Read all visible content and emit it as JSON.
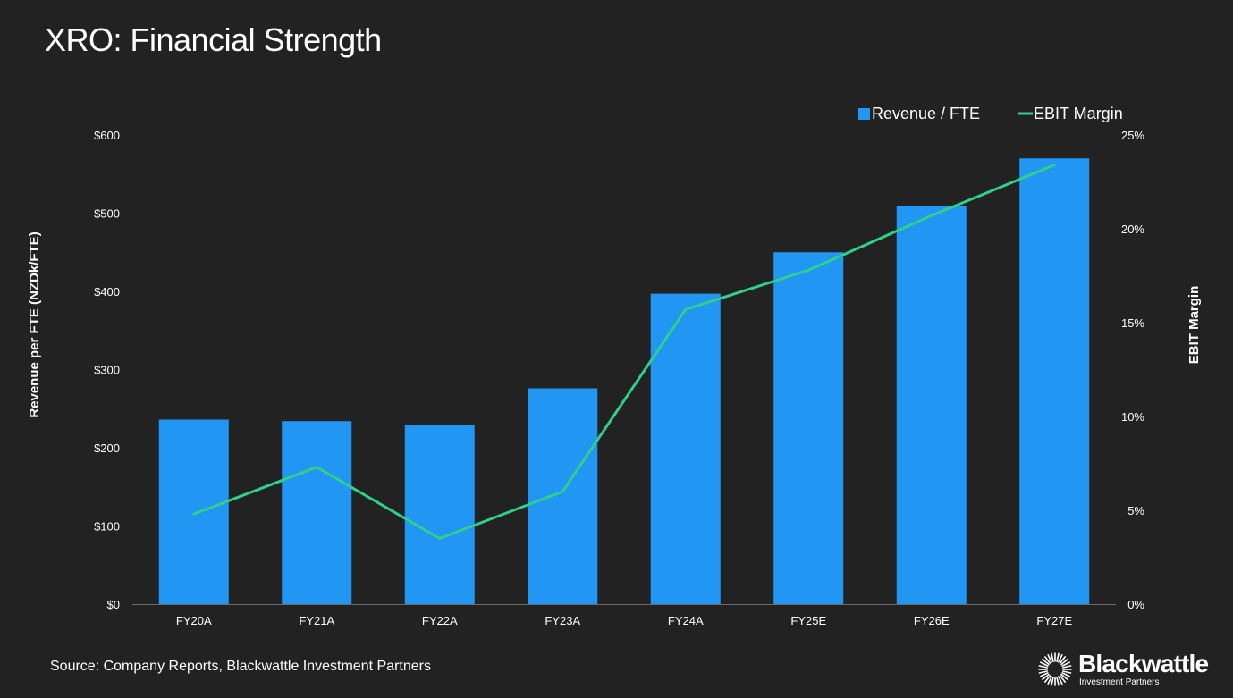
{
  "page": {
    "title": "XRO: Financial Strength",
    "source": "Source: Company Reports, Blackwattle Investment Partners",
    "logo": {
      "name": "Blackwattle",
      "tagline": "Investment Partners",
      "icon": "sunburst-logo-icon"
    }
  },
  "chart_data": {
    "type": "bar",
    "categories": [
      "FY20A",
      "FY21A",
      "FY22A",
      "FY23A",
      "FY24A",
      "FY25E",
      "FY26E",
      "FY27E"
    ],
    "series": [
      {
        "name": "Revenue / FTE",
        "kind": "bar",
        "axis": "left",
        "color": "#2196f3",
        "values": [
          236,
          234,
          229,
          276,
          397,
          450,
          509,
          570
        ]
      },
      {
        "name": "EBIT Margin",
        "kind": "line",
        "axis": "right",
        "color": "#2fd08a",
        "values": [
          4.8,
          7.3,
          3.5,
          6.0,
          15.7,
          17.8,
          20.7,
          23.4
        ]
      }
    ],
    "ylabel": "Revenue per FTE (NZDk/FTE)",
    "y2label": "EBIT Margin",
    "ylim": [
      0,
      600
    ],
    "y2lim": [
      0,
      25
    ],
    "yticks": [
      "$0",
      "$100",
      "$200",
      "$300",
      "$400",
      "$500",
      "$600"
    ],
    "y2ticks": [
      "0%",
      "5%",
      "10%",
      "15%",
      "20%",
      "25%"
    ],
    "legend": {
      "position": "top-right"
    },
    "grid": false,
    "colors": {
      "background": "#222222",
      "axis": "#6a6a6a",
      "text": "#ffffff"
    }
  }
}
